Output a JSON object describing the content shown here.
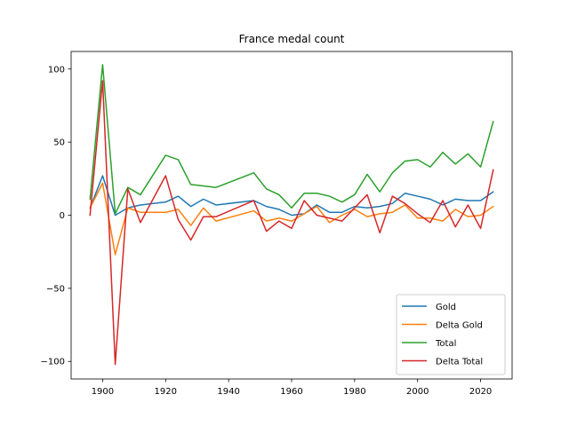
{
  "chart_data": {
    "type": "line",
    "title": "France medal count",
    "xlabel": "",
    "ylabel": "",
    "xlim": [
      1890,
      2030
    ],
    "ylim": [
      -112,
      112
    ],
    "xticks": [
      1900,
      1920,
      1940,
      1960,
      1980,
      2000,
      2020
    ],
    "yticks": [
      -100,
      -50,
      0,
      50,
      100
    ],
    "xtick_labels": [
      "1900",
      "1920",
      "1940",
      "1960",
      "1980",
      "2000",
      "2020"
    ],
    "ytick_labels": [
      "−100",
      "−50",
      "0",
      "50",
      "100"
    ],
    "grid": false,
    "legend_position": "lower-right",
    "x": [
      1896,
      1900,
      1904,
      1908,
      1912,
      1920,
      1924,
      1928,
      1932,
      1936,
      1948,
      1952,
      1956,
      1960,
      1964,
      1968,
      1972,
      1976,
      1980,
      1984,
      1988,
      1992,
      1996,
      2000,
      2004,
      2008,
      2012,
      2016,
      2020,
      2024
    ],
    "series": [
      {
        "name": "Gold",
        "color": "#1f77b4",
        "values": [
          5,
          27,
          0,
          5,
          7,
          9,
          13,
          6,
          11,
          7,
          10,
          6,
          4,
          0,
          1,
          7,
          2,
          2,
          6,
          5,
          6,
          8,
          15,
          13,
          11,
          7,
          11,
          10,
          10,
          16
        ]
      },
      {
        "name": "Delta Gold",
        "color": "#ff7f0e",
        "values": [
          5,
          22,
          -27,
          5,
          2,
          2,
          4,
          -7,
          5,
          -4,
          3,
          -4,
          -2,
          -4,
          1,
          6,
          -5,
          0,
          4,
          -1,
          1,
          2,
          7,
          -2,
          -2,
          -4,
          4,
          -1,
          0,
          6
        ]
      },
      {
        "name": "Total",
        "color": "#2ca02c",
        "values": [
          11,
          103,
          1,
          19,
          14,
          41,
          38,
          21,
          20,
          19,
          29,
          18,
          14,
          5,
          15,
          15,
          13,
          9,
          14,
          28,
          16,
          29,
          37,
          38,
          33,
          43,
          35,
          42,
          33,
          64
        ]
      },
      {
        "name": "Delta Total",
        "color": "#d62728",
        "values": [
          0,
          92,
          -102,
          18,
          -5,
          27,
          -3,
          -17,
          -1,
          -1,
          10,
          -11,
          -4,
          -9,
          10,
          0,
          -2,
          -4,
          5,
          14,
          -12,
          13,
          8,
          1,
          -5,
          10,
          -8,
          7,
          -9,
          31
        ]
      }
    ]
  }
}
